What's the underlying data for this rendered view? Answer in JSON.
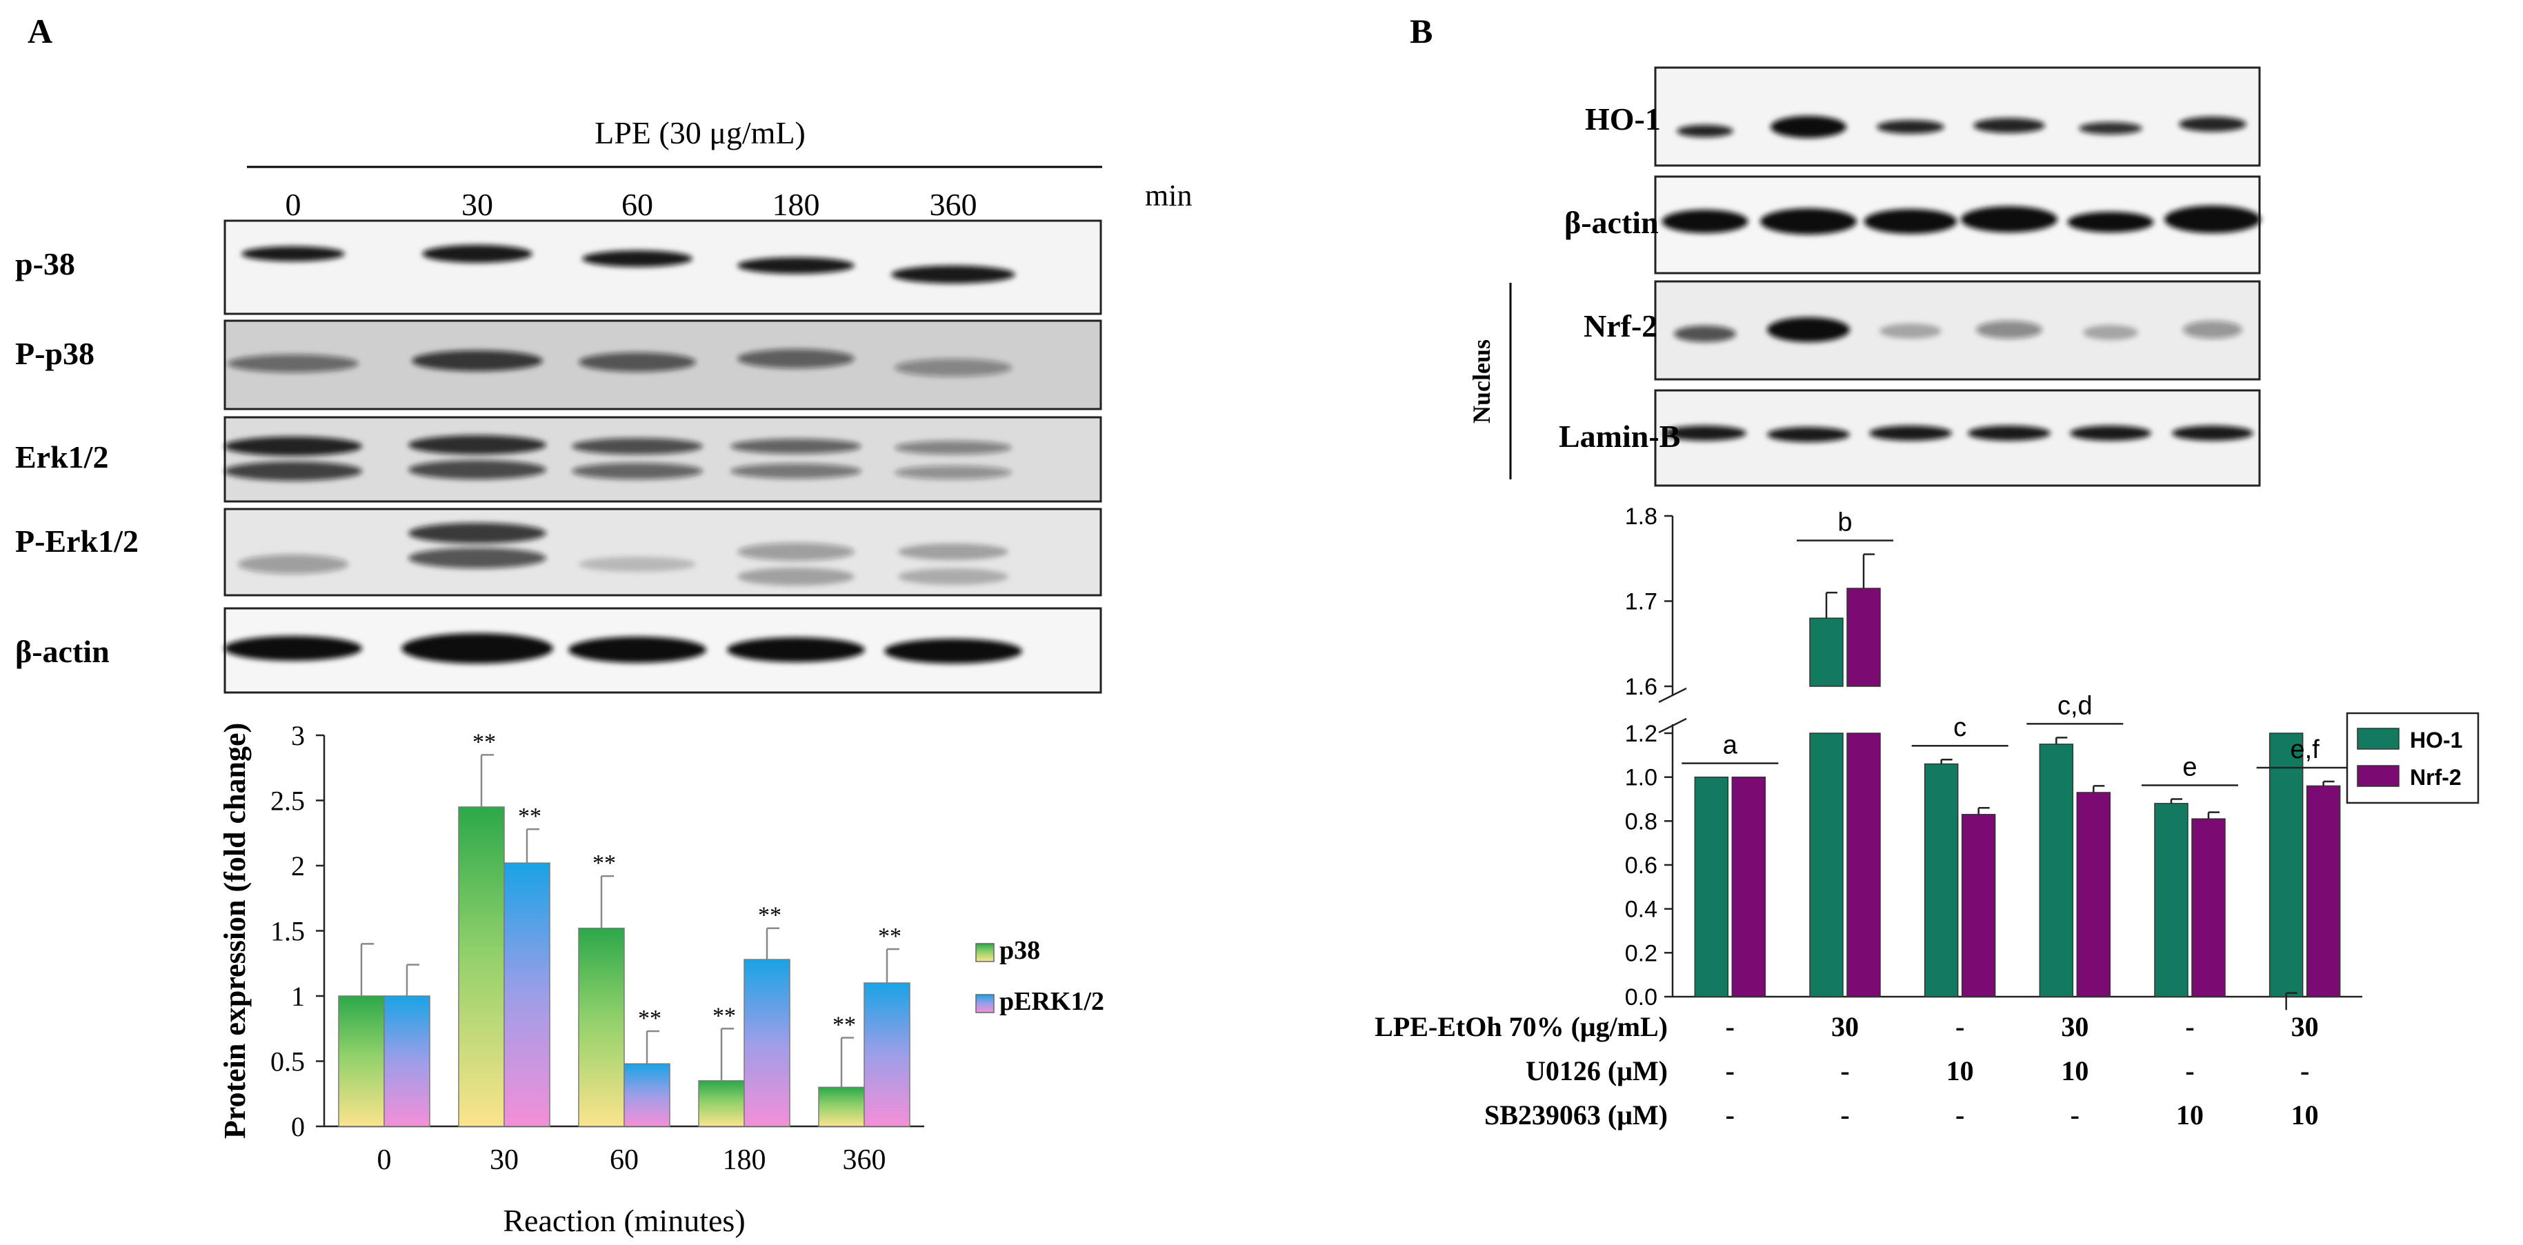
{
  "panel_a": {
    "letter": "A",
    "treatment_label": "LPE (30 μg/mL)",
    "timepoints": [
      "0",
      "30",
      "60",
      "180",
      "360"
    ],
    "time_unit": "min",
    "blot_labels": [
      "p-38",
      "P-p38",
      "Erk1/2",
      "P-Erk1/2",
      "β-actin"
    ]
  },
  "panel_b": {
    "letter": "B",
    "blot_labels": [
      "HO-1",
      "β-actin",
      "Nrf-2",
      "Lamin-B"
    ],
    "nucleus_label": "Nucleus",
    "conditions": [
      {
        "label": "LPE-EtOh 70% (μg/mL)",
        "values": [
          "-",
          "30",
          "-",
          "30",
          "-",
          "30"
        ]
      },
      {
        "label": "U0126 (μM)",
        "values": [
          "-",
          "-",
          "10",
          "10",
          "-",
          "-"
        ]
      },
      {
        "label": "SB239063 (μM)",
        "values": [
          "-",
          "-",
          "-",
          "-",
          "10",
          "10"
        ]
      }
    ]
  },
  "chart_data": [
    {
      "type": "bar",
      "ylabel": "Protein expression (fold change)",
      "xlabel": "Reaction (minutes)",
      "categories": [
        "0",
        "30",
        "60",
        "180",
        "360"
      ],
      "ylim": [
        0,
        3
      ],
      "yticks": [
        "0",
        "0.5",
        "1",
        "1.5",
        "2",
        "2.5",
        "3"
      ],
      "series": [
        {
          "name": "p38",
          "values": [
            1.0,
            2.45,
            1.52,
            0.35,
            0.3
          ],
          "errors": [
            0.4,
            0.4,
            0.4,
            0.4,
            0.38
          ],
          "sig": [
            "",
            "**",
            "**",
            "**",
            "**"
          ]
        },
        {
          "name": "pERK1/2",
          "values": [
            1.0,
            2.02,
            0.48,
            1.28,
            1.1
          ],
          "errors": [
            0.24,
            0.26,
            0.25,
            0.24,
            0.26
          ],
          "sig": [
            "",
            "**",
            "**",
            "**",
            "**"
          ]
        }
      ],
      "legend_position": "right",
      "grid": false
    },
    {
      "type": "bar",
      "categories": [
        "1",
        "2",
        "3",
        "4",
        "5",
        "6"
      ],
      "axis_break": true,
      "lower_yticks": [
        "0.0",
        "0.2",
        "0.4",
        "0.6",
        "0.8",
        "1.0",
        "1.2"
      ],
      "upper_yticks": [
        "1.6",
        "1.7",
        "1.8"
      ],
      "series": [
        {
          "name": "HO-1",
          "color": "#127a5e",
          "values": [
            1.0,
            1.68,
            1.06,
            1.15,
            0.88,
            1.22
          ],
          "errors": [
            0.0,
            0.03,
            0.02,
            0.03,
            0.02,
            0.02
          ]
        },
        {
          "name": "Nrf-2",
          "color": "#7b0a72",
          "values": [
            1.0,
            1.715,
            0.83,
            0.93,
            0.81,
            0.96
          ],
          "errors": [
            0.0,
            0.04,
            0.03,
            0.03,
            0.03,
            0.02
          ]
        }
      ],
      "group_letters": [
        "a",
        "b",
        "c",
        "c,d",
        "e",
        "e,f"
      ],
      "legend_position": "right",
      "grid": false
    }
  ]
}
